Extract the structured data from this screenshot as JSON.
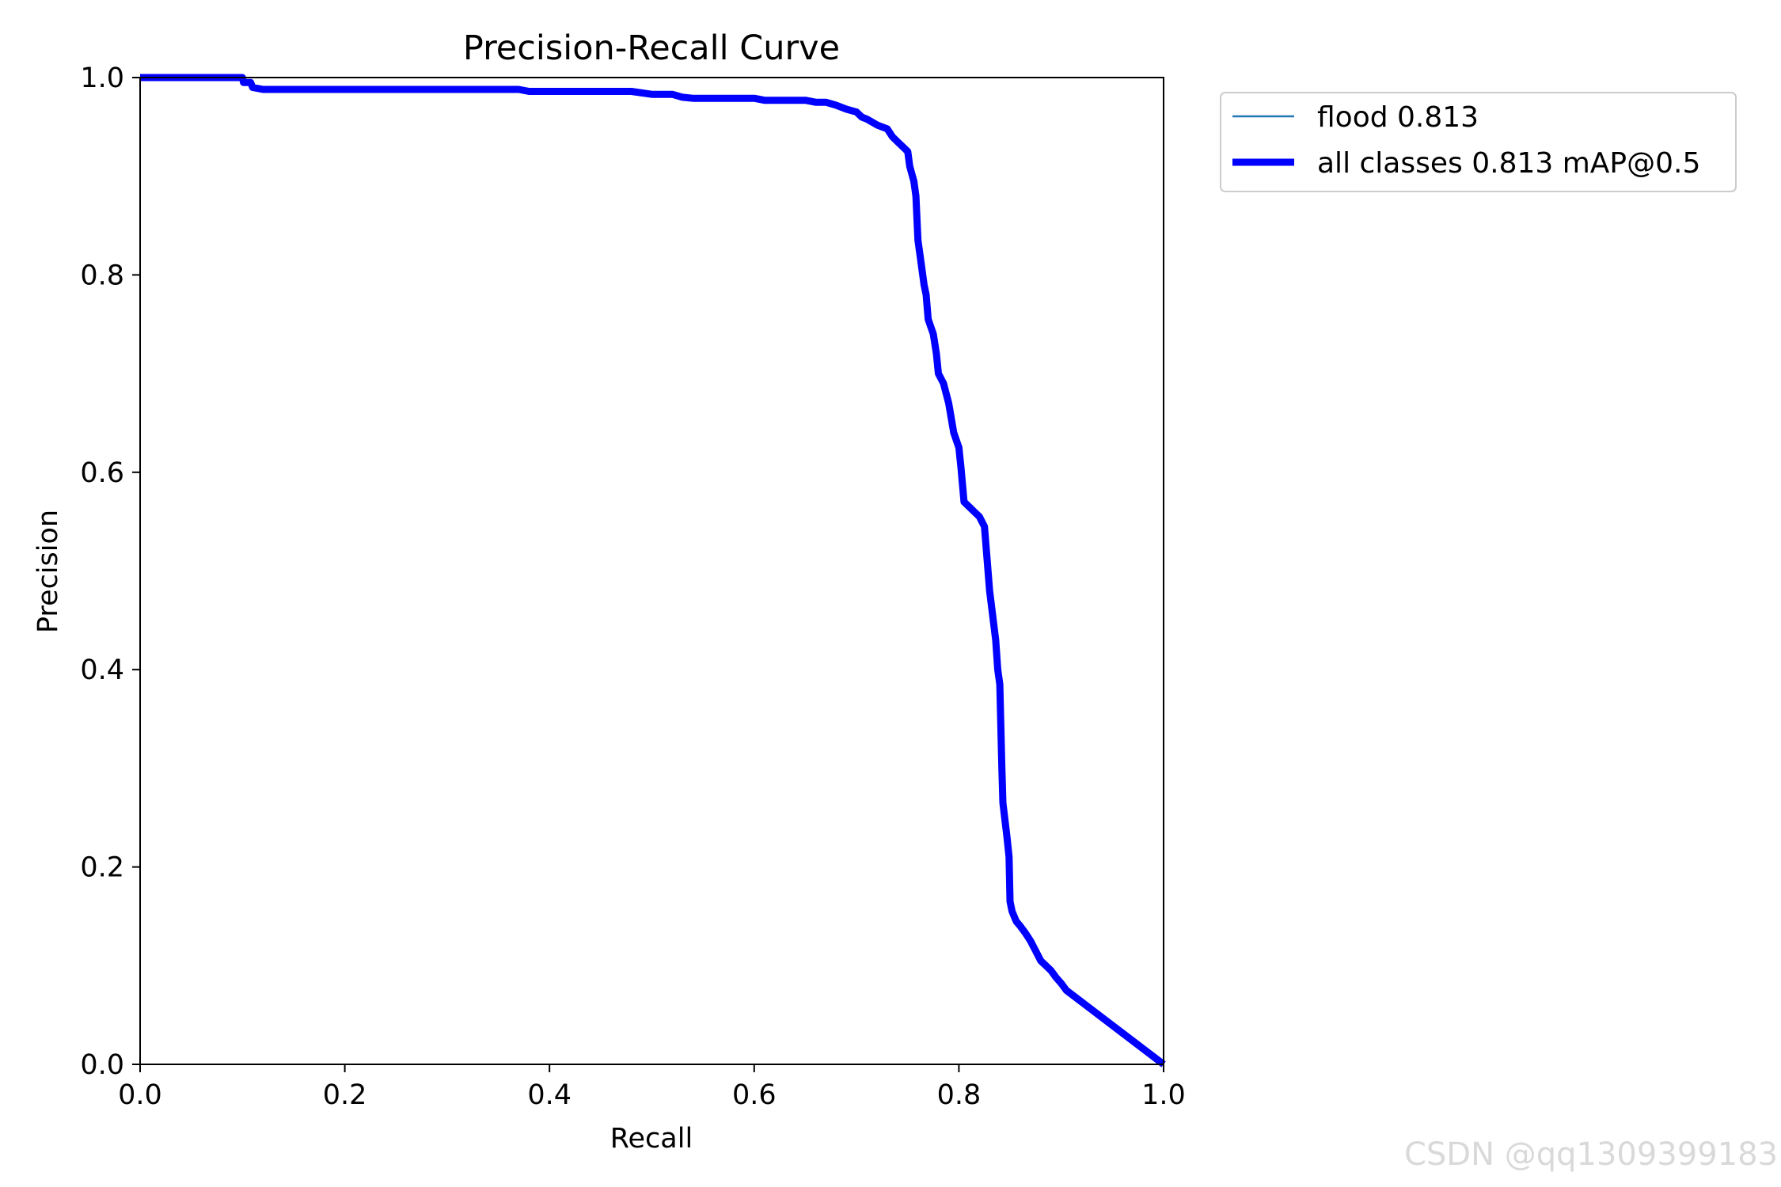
{
  "chart_data": {
    "type": "line",
    "title": "Precision-Recall Curve",
    "xlabel": "Recall",
    "ylabel": "Precision",
    "xlim": [
      0,
      1
    ],
    "ylim": [
      0,
      1
    ],
    "xticks": [
      "0.0",
      "0.2",
      "0.4",
      "0.6",
      "0.8",
      "1.0"
    ],
    "yticks": [
      "0.0",
      "0.2",
      "0.4",
      "0.6",
      "0.8",
      "1.0"
    ],
    "grid": false,
    "legend_position": "outside-top-right",
    "series": [
      {
        "name": "flood 0.813",
        "color": "#1f77b4",
        "style": "thin",
        "x": [
          0.0,
          0.1,
          0.101,
          0.108,
          0.11,
          0.12,
          0.2,
          0.3,
          0.37,
          0.38,
          0.48,
          0.5,
          0.52,
          0.53,
          0.54,
          0.6,
          0.61,
          0.62,
          0.65,
          0.66,
          0.67,
          0.68,
          0.69,
          0.7,
          0.705,
          0.71,
          0.72,
          0.725,
          0.73,
          0.735,
          0.74,
          0.745,
          0.75,
          0.752,
          0.756,
          0.758,
          0.76,
          0.762,
          0.766,
          0.768,
          0.77,
          0.775,
          0.778,
          0.78,
          0.785,
          0.79,
          0.795,
          0.8,
          0.802,
          0.805,
          0.81,
          0.815,
          0.82,
          0.825,
          0.83,
          0.836,
          0.838,
          0.84,
          0.842,
          0.843,
          0.847,
          0.849,
          0.85,
          0.852,
          0.856,
          0.86,
          0.865,
          0.87,
          0.88,
          0.885,
          0.89,
          0.895,
          0.9,
          0.905,
          1.0
        ],
        "y": [
          1.0,
          1.0,
          0.995,
          0.995,
          0.99,
          0.988,
          0.988,
          0.988,
          0.988,
          0.986,
          0.986,
          0.983,
          0.983,
          0.98,
          0.979,
          0.979,
          0.977,
          0.977,
          0.977,
          0.975,
          0.975,
          0.972,
          0.968,
          0.965,
          0.96,
          0.958,
          0.952,
          0.95,
          0.948,
          0.94,
          0.935,
          0.93,
          0.925,
          0.91,
          0.895,
          0.88,
          0.835,
          0.82,
          0.79,
          0.78,
          0.755,
          0.74,
          0.72,
          0.7,
          0.69,
          0.67,
          0.64,
          0.625,
          0.605,
          0.57,
          0.565,
          0.56,
          0.555,
          0.545,
          0.48,
          0.43,
          0.4,
          0.385,
          0.3,
          0.265,
          0.23,
          0.21,
          0.165,
          0.155,
          0.145,
          0.14,
          0.133,
          0.125,
          0.105,
          0.1,
          0.095,
          0.088,
          0.082,
          0.075,
          0.0
        ]
      },
      {
        "name": "all classes 0.813 mAP@0.5",
        "color": "#0000ff",
        "style": "thick",
        "x": [
          0.0,
          0.1,
          0.101,
          0.108,
          0.11,
          0.12,
          0.2,
          0.3,
          0.37,
          0.38,
          0.48,
          0.5,
          0.52,
          0.53,
          0.54,
          0.6,
          0.61,
          0.62,
          0.65,
          0.66,
          0.67,
          0.68,
          0.69,
          0.7,
          0.705,
          0.71,
          0.72,
          0.725,
          0.73,
          0.735,
          0.74,
          0.745,
          0.75,
          0.752,
          0.756,
          0.758,
          0.76,
          0.762,
          0.766,
          0.768,
          0.77,
          0.775,
          0.778,
          0.78,
          0.785,
          0.79,
          0.795,
          0.8,
          0.802,
          0.805,
          0.81,
          0.815,
          0.82,
          0.825,
          0.83,
          0.836,
          0.838,
          0.84,
          0.842,
          0.843,
          0.847,
          0.849,
          0.85,
          0.852,
          0.856,
          0.86,
          0.865,
          0.87,
          0.88,
          0.885,
          0.89,
          0.895,
          0.9,
          0.905,
          1.0
        ],
        "y": [
          1.0,
          1.0,
          0.995,
          0.995,
          0.99,
          0.988,
          0.988,
          0.988,
          0.988,
          0.986,
          0.986,
          0.983,
          0.983,
          0.98,
          0.979,
          0.979,
          0.977,
          0.977,
          0.977,
          0.975,
          0.975,
          0.972,
          0.968,
          0.965,
          0.96,
          0.958,
          0.952,
          0.95,
          0.948,
          0.94,
          0.935,
          0.93,
          0.925,
          0.91,
          0.895,
          0.88,
          0.835,
          0.82,
          0.79,
          0.78,
          0.755,
          0.74,
          0.72,
          0.7,
          0.69,
          0.67,
          0.64,
          0.625,
          0.605,
          0.57,
          0.565,
          0.56,
          0.555,
          0.545,
          0.48,
          0.43,
          0.4,
          0.385,
          0.3,
          0.265,
          0.23,
          0.21,
          0.165,
          0.155,
          0.145,
          0.14,
          0.133,
          0.125,
          0.105,
          0.1,
          0.095,
          0.088,
          0.082,
          0.075,
          0.0
        ]
      }
    ]
  },
  "watermark": "CSDN @qq1309399183"
}
